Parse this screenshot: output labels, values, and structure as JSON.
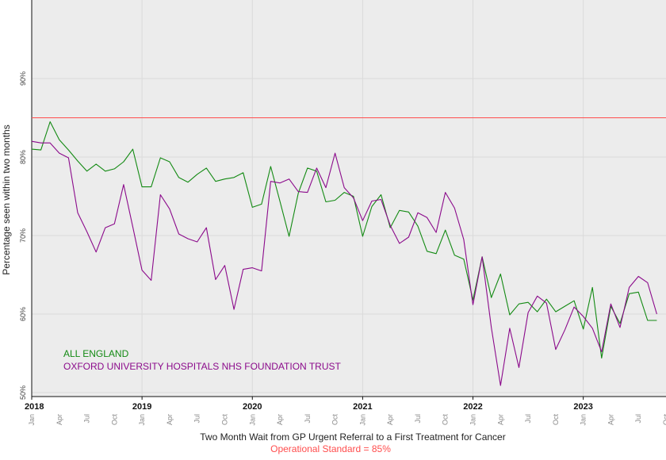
{
  "chart_data": {
    "type": "line",
    "title": "",
    "xlabel": "Two Month Wait from GP Urgent Referral to a First Treatment for Cancer",
    "ylabel": "Percentage seen within two months",
    "caption": "Operational Standard = 85%",
    "ylim": [
      49.5,
      100
    ],
    "y_ticks": [
      {
        "value": 50,
        "label": "50%"
      },
      {
        "value": 60,
        "label": "60%"
      },
      {
        "value": 70,
        "label": "70%"
      },
      {
        "value": 80,
        "label": "80%"
      },
      {
        "value": 90,
        "label": "90%"
      }
    ],
    "x_start": "2018-01",
    "x_end": "2023-10",
    "year_labels": [
      "2018",
      "2019",
      "2020",
      "2021",
      "2022",
      "2023"
    ],
    "month_labels": [
      "Jan",
      "Apr",
      "Jul",
      "Oct"
    ],
    "reference_line": {
      "value": 85,
      "color": "#ff4d4d"
    },
    "grid": true,
    "legend_position": "bottom-left",
    "x": [
      "2018-01",
      "2018-02",
      "2018-03",
      "2018-04",
      "2018-05",
      "2018-06",
      "2018-07",
      "2018-08",
      "2018-09",
      "2018-10",
      "2018-11",
      "2018-12",
      "2019-01",
      "2019-02",
      "2019-03",
      "2019-04",
      "2019-05",
      "2019-06",
      "2019-07",
      "2019-08",
      "2019-09",
      "2019-10",
      "2019-11",
      "2019-12",
      "2020-01",
      "2020-02",
      "2020-03",
      "2020-04",
      "2020-05",
      "2020-06",
      "2020-07",
      "2020-08",
      "2020-09",
      "2020-10",
      "2020-11",
      "2020-12",
      "2021-01",
      "2021-02",
      "2021-03",
      "2021-04",
      "2021-05",
      "2021-06",
      "2021-07",
      "2021-08",
      "2021-09",
      "2021-10",
      "2021-11",
      "2021-12",
      "2022-01",
      "2022-02",
      "2022-03",
      "2022-04",
      "2022-05",
      "2022-06",
      "2022-07",
      "2022-08",
      "2022-09",
      "2022-10",
      "2022-11",
      "2022-12",
      "2023-01",
      "2023-02",
      "2023-03",
      "2023-04",
      "2023-05",
      "2023-06",
      "2023-07",
      "2023-08",
      "2023-09"
    ],
    "series": [
      {
        "name": "ALL ENGLAND",
        "color": "#138a13",
        "values": [
          81.0,
          80.9,
          84.5,
          82.2,
          80.9,
          79.5,
          78.2,
          79.1,
          78.2,
          78.5,
          79.4,
          81.0,
          76.2,
          76.2,
          79.9,
          79.4,
          77.4,
          76.8,
          77.8,
          78.6,
          76.9,
          77.2,
          77.4,
          78.0,
          73.6,
          74.0,
          78.8,
          74.4,
          69.9,
          75.4,
          78.6,
          78.2,
          74.3,
          74.5,
          75.5,
          75.0,
          69.9,
          73.7,
          75.2,
          71.0,
          73.2,
          73.0,
          71.2,
          68.0,
          67.7,
          70.7,
          67.5,
          67.0,
          61.8,
          67.3,
          62.1,
          65.1,
          59.9,
          61.3,
          61.5,
          60.3,
          61.9,
          60.3,
          61.0,
          61.7,
          58.1,
          63.4,
          54.4,
          61.0,
          58.8,
          62.6,
          62.8,
          59.2,
          59.2
        ]
      },
      {
        "name": "OXFORD UNIVERSITY HOSPITALS NHS FOUNDATION TRUST",
        "color": "#8b0a8b",
        "values": [
          82.0,
          81.8,
          81.8,
          80.5,
          79.9,
          72.9,
          70.5,
          67.9,
          71.0,
          71.5,
          76.5,
          71.1,
          65.6,
          64.3,
          75.2,
          73.4,
          70.2,
          69.6,
          69.2,
          71.0,
          64.4,
          66.2,
          60.6,
          65.7,
          65.9,
          65.5,
          76.9,
          76.7,
          77.2,
          75.6,
          75.5,
          78.6,
          76.1,
          80.5,
          76.1,
          74.8,
          71.9,
          74.4,
          74.6,
          71.3,
          69.0,
          69.8,
          72.9,
          72.3,
          70.4,
          75.5,
          73.5,
          69.5,
          61.2,
          67.3,
          58.3,
          50.9,
          58.2,
          53.2,
          60.2,
          62.3,
          61.4,
          55.5,
          58.0,
          60.9,
          59.7,
          58.2,
          55.2,
          61.3,
          58.3,
          63.4,
          64.8,
          64.0,
          60.0
        ]
      }
    ]
  }
}
